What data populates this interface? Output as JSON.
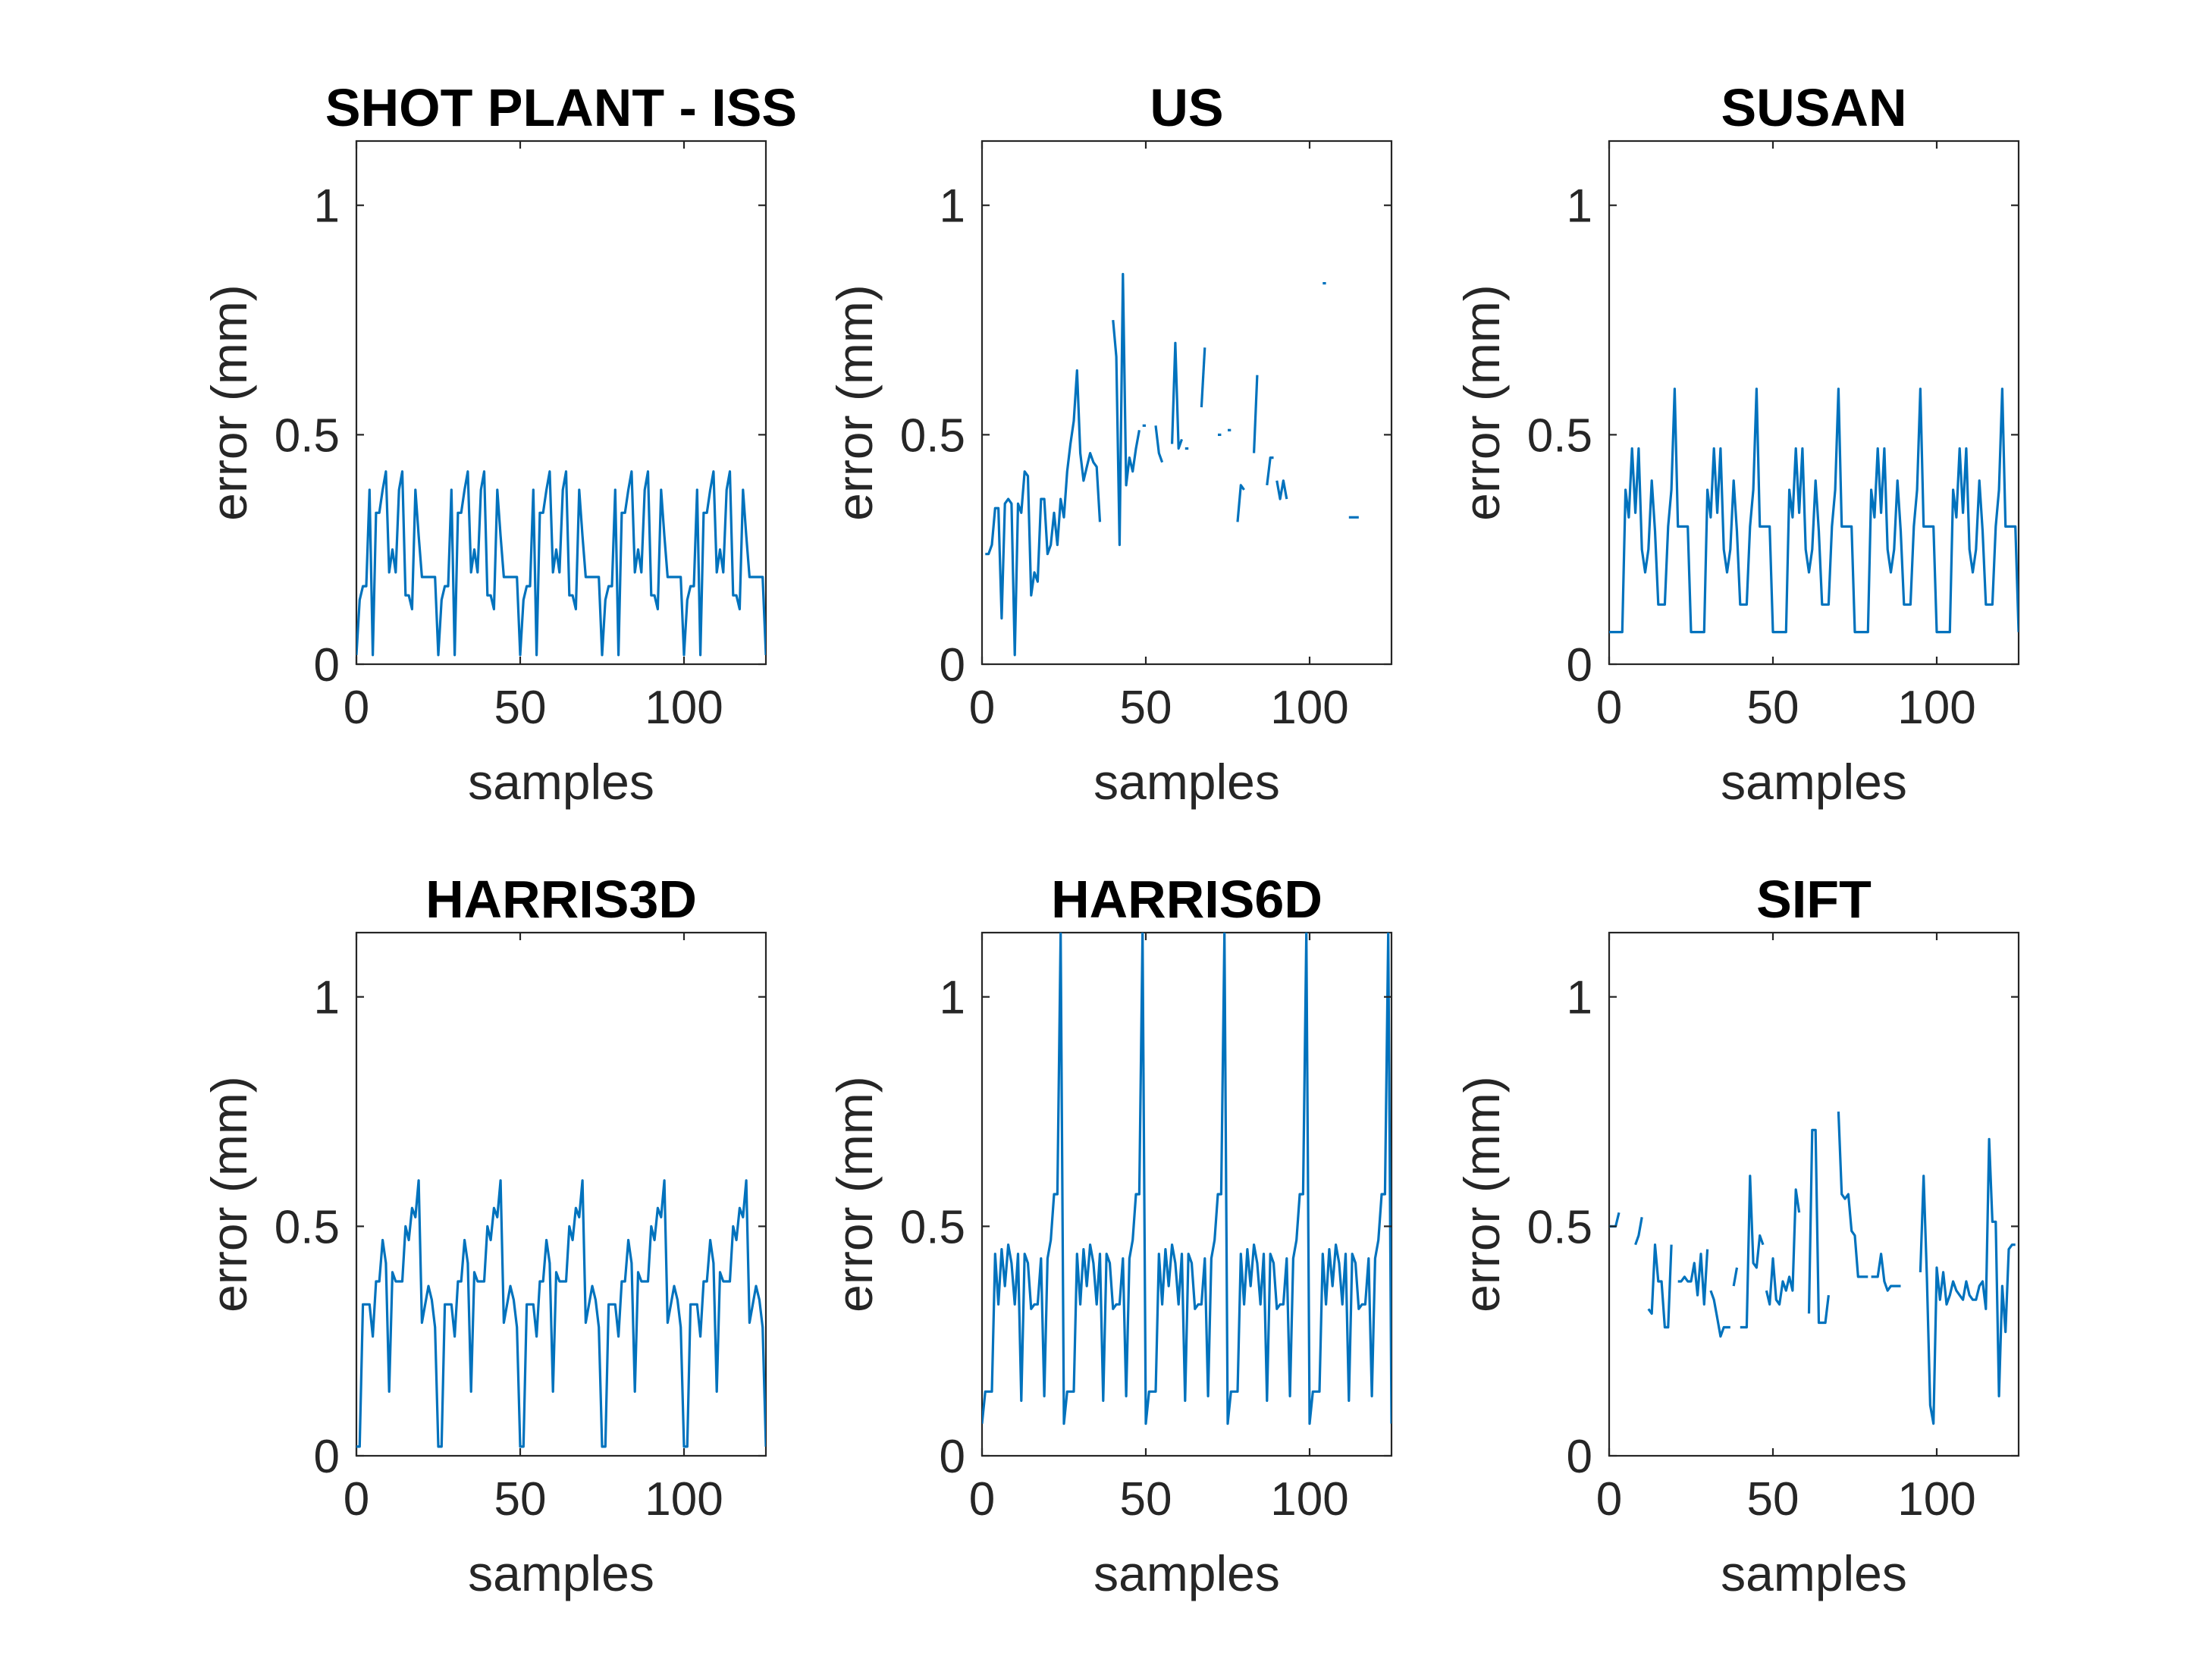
{
  "figure": {
    "series_color": "#0072BD",
    "axis_color": "#262626"
  },
  "chart_data": [
    {
      "type": "line",
      "title": "SHOT PLANT - ISS",
      "xlabel": "samples",
      "ylabel": "error (mm)",
      "xlim": [
        0,
        125
      ],
      "ylim": [
        0,
        1.14
      ],
      "xticks": [
        0,
        50,
        100
      ],
      "yticks": [
        0,
        0.5,
        1
      ],
      "xtick_labels": [
        "0",
        "50",
        "100"
      ],
      "ytick_labels": [
        "0",
        "0.5",
        "1"
      ],
      "pattern_period": 25,
      "pattern": [
        0.02,
        0.14,
        0.17,
        0.17,
        0.38,
        0.02,
        0.33,
        0.33,
        0.38,
        0.42,
        0.2,
        0.25,
        0.2,
        0.38,
        0.42,
        0.15,
        0.15,
        0.12,
        0.38,
        0.28,
        0.19,
        0.19,
        0.19,
        0.19,
        0.19
      ]
    },
    {
      "type": "line",
      "title": "US",
      "xlabel": "samples",
      "ylabel": "error (mm)",
      "xlim": [
        0,
        125
      ],
      "ylim": [
        0,
        1.14
      ],
      "xticks": [
        0,
        50,
        100
      ],
      "yticks": [
        0,
        0.5,
        1
      ],
      "xtick_labels": [
        "0",
        "50",
        "100"
      ],
      "ytick_labels": [
        "0",
        "0.5",
        "1"
      ],
      "segments": [
        [
          [
            1,
            0.24
          ],
          [
            2,
            0.24
          ],
          [
            3,
            0.26
          ],
          [
            4,
            0.34
          ],
          [
            5,
            0.34
          ],
          [
            6,
            0.1
          ],
          [
            7,
            0.35
          ],
          [
            8,
            0.36
          ],
          [
            9,
            0.35
          ],
          [
            10,
            0.02
          ],
          [
            11,
            0.35
          ],
          [
            12,
            0.33
          ],
          [
            13,
            0.42
          ],
          [
            14,
            0.41
          ],
          [
            15,
            0.15
          ],
          [
            16,
            0.2
          ],
          [
            17,
            0.18
          ],
          [
            18,
            0.36
          ],
          [
            19,
            0.36
          ],
          [
            20,
            0.24
          ],
          [
            21,
            0.26
          ],
          [
            22,
            0.33
          ],
          [
            23,
            0.26
          ],
          [
            24,
            0.36
          ],
          [
            25,
            0.32
          ],
          [
            26,
            0.42
          ],
          [
            27,
            0.48
          ],
          [
            28,
            0.53
          ],
          [
            29,
            0.64
          ],
          [
            30,
            0.46
          ],
          [
            31,
            0.4
          ],
          [
            32,
            0.43
          ],
          [
            33,
            0.46
          ],
          [
            34,
            0.44
          ],
          [
            35,
            0.43
          ],
          [
            36,
            0.31
          ]
        ],
        [
          [
            40,
            0.75
          ],
          [
            41,
            0.67
          ],
          [
            42,
            0.26
          ],
          [
            43,
            0.85
          ],
          [
            44,
            0.39
          ],
          [
            45,
            0.45
          ],
          [
            46,
            0.42
          ],
          [
            47,
            0.47
          ],
          [
            48,
            0.51
          ]
        ],
        [
          [
            49,
            0.52
          ],
          [
            50,
            0.52
          ]
        ],
        [
          [
            53,
            0.52
          ],
          [
            54,
            0.46
          ],
          [
            55,
            0.44
          ]
        ],
        [
          [
            58,
            0.48
          ],
          [
            59,
            0.7
          ],
          [
            60,
            0.47
          ],
          [
            61,
            0.49
          ]
        ],
        [
          [
            62,
            0.47
          ],
          [
            63,
            0.47
          ]
        ],
        [
          [
            67,
            0.56
          ],
          [
            68,
            0.69
          ]
        ],
        [
          [
            72,
            0.5
          ],
          [
            73,
            0.5
          ]
        ],
        [
          [
            75,
            0.51
          ],
          [
            76,
            0.51
          ]
        ],
        [
          [
            78,
            0.31
          ],
          [
            79,
            0.39
          ],
          [
            80,
            0.38
          ]
        ],
        [
          [
            83,
            0.46
          ],
          [
            84,
            0.63
          ]
        ],
        [
          [
            87,
            0.39
          ],
          [
            88,
            0.45
          ],
          [
            89,
            0.45
          ]
        ],
        [
          [
            90,
            0.4
          ],
          [
            91,
            0.36
          ],
          [
            92,
            0.4
          ],
          [
            93,
            0.36
          ]
        ],
        [
          [
            104,
            0.83
          ],
          [
            105,
            0.83
          ]
        ],
        [
          [
            112,
            0.32
          ],
          [
            115,
            0.32
          ]
        ]
      ]
    },
    {
      "type": "line",
      "title": "SUSAN",
      "xlabel": "samples",
      "ylabel": "error (mm)",
      "xlim": [
        0,
        125
      ],
      "ylim": [
        0,
        1.14
      ],
      "xticks": [
        0,
        50,
        100
      ],
      "yticks": [
        0,
        0.5,
        1
      ],
      "xtick_labels": [
        "0",
        "50",
        "100"
      ],
      "ytick_labels": [
        "0",
        "0.5",
        "1"
      ],
      "pattern_period": 25,
      "pattern": [
        0.07,
        0.07,
        0.07,
        0.07,
        0.07,
        0.38,
        0.32,
        0.47,
        0.33,
        0.47,
        0.25,
        0.2,
        0.25,
        0.4,
        0.29,
        0.13,
        0.13,
        0.13,
        0.3,
        0.38,
        0.6,
        0.3,
        0.3,
        0.3,
        0.3
      ]
    },
    {
      "type": "line",
      "title": "HARRIS3D",
      "xlabel": "samples",
      "ylabel": "error (mm)",
      "xlim": [
        0,
        125
      ],
      "ylim": [
        0,
        1.14
      ],
      "xticks": [
        0,
        50,
        100
      ],
      "yticks": [
        0,
        0.5,
        1
      ],
      "xtick_labels": [
        "0",
        "50",
        "100"
      ],
      "ytick_labels": [
        "0",
        "0.5",
        "1"
      ],
      "pattern_period": 25,
      "pattern": [
        0.02,
        0.02,
        0.33,
        0.33,
        0.33,
        0.26,
        0.38,
        0.38,
        0.47,
        0.42,
        0.14,
        0.4,
        0.38,
        0.38,
        0.38,
        0.5,
        0.47,
        0.54,
        0.52,
        0.6,
        0.29,
        0.33,
        0.37,
        0.34,
        0.28
      ]
    },
    {
      "type": "line",
      "title": "HARRIS6D",
      "xlabel": "samples",
      "ylabel": "error (mm)",
      "xlim": [
        0,
        125
      ],
      "ylim": [
        0,
        1.14
      ],
      "xticks": [
        0,
        50,
        100
      ],
      "yticks": [
        0,
        0.5,
        1
      ],
      "xtick_labels": [
        "0",
        "50",
        "100"
      ],
      "ytick_labels": [
        "0",
        "0.5",
        "1"
      ],
      "pattern_period": 25,
      "pattern": [
        0.07,
        0.14,
        0.14,
        0.14,
        0.44,
        0.33,
        0.45,
        0.37,
        0.46,
        0.42,
        0.33,
        0.44,
        0.12,
        0.44,
        0.42,
        0.32,
        0.33,
        0.33,
        0.43,
        0.13,
        0.43,
        0.47,
        0.57,
        0.57,
        1.14
      ]
    },
    {
      "type": "line",
      "title": "SIFT",
      "xlabel": "samples",
      "ylabel": "error (mm)",
      "xlim": [
        0,
        125
      ],
      "ylim": [
        0,
        1.14
      ],
      "xticks": [
        0,
        50,
        100
      ],
      "yticks": [
        0,
        0.5,
        1
      ],
      "xtick_labels": [
        "0",
        "50",
        "100"
      ],
      "ytick_labels": [
        "0",
        "0.5",
        "1"
      ],
      "segments": [
        [
          [
            0,
            0.5
          ],
          [
            2,
            0.5
          ],
          [
            3,
            0.53
          ]
        ],
        [
          [
            8,
            0.46
          ],
          [
            9,
            0.48
          ],
          [
            10,
            0.52
          ]
        ],
        [
          [
            12,
            0.32
          ],
          [
            13,
            0.31
          ],
          [
            14,
            0.46
          ],
          [
            15,
            0.38
          ],
          [
            16,
            0.38
          ],
          [
            17,
            0.28
          ],
          [
            18,
            0.28
          ],
          [
            19,
            0.46
          ]
        ],
        [
          [
            21,
            0.38
          ],
          [
            22,
            0.38
          ],
          [
            23,
            0.39
          ],
          [
            24,
            0.38
          ],
          [
            25,
            0.38
          ],
          [
            26,
            0.42
          ],
          [
            27,
            0.35
          ],
          [
            28,
            0.44
          ],
          [
            29,
            0.33
          ],
          [
            30,
            0.45
          ]
        ],
        [
          [
            31,
            0.36
          ],
          [
            32,
            0.34
          ],
          [
            33,
            0.3
          ],
          [
            34,
            0.26
          ],
          [
            35,
            0.28
          ],
          [
            36,
            0.28
          ],
          [
            37,
            0.28
          ]
        ],
        [
          [
            38,
            0.37
          ],
          [
            39,
            0.41
          ]
        ],
        [
          [
            40,
            0.28
          ],
          [
            41,
            0.28
          ],
          [
            42,
            0.28
          ],
          [
            43,
            0.61
          ],
          [
            44,
            0.42
          ],
          [
            45,
            0.41
          ],
          [
            46,
            0.48
          ],
          [
            47,
            0.46
          ]
        ],
        [
          [
            48,
            0.36
          ],
          [
            49,
            0.33
          ],
          [
            50,
            0.43
          ],
          [
            51,
            0.34
          ],
          [
            52,
            0.33
          ],
          [
            53,
            0.38
          ],
          [
            54,
            0.36
          ],
          [
            55,
            0.39
          ],
          [
            56,
            0.36
          ],
          [
            57,
            0.58
          ],
          [
            58,
            0.53
          ]
        ],
        [
          [
            61,
            0.31
          ],
          [
            62,
            0.71
          ],
          [
            63,
            0.71
          ],
          [
            64,
            0.29
          ],
          [
            65,
            0.29
          ],
          [
            66,
            0.29
          ],
          [
            67,
            0.35
          ]
        ],
        [
          [
            70,
            0.75
          ],
          [
            71,
            0.57
          ],
          [
            72,
            0.56
          ],
          [
            73,
            0.57
          ],
          [
            74,
            0.49
          ],
          [
            75,
            0.48
          ],
          [
            76,
            0.39
          ],
          [
            77,
            0.39
          ],
          [
            78,
            0.39
          ],
          [
            79,
            0.39
          ]
        ],
        [
          [
            80,
            0.39
          ],
          [
            81,
            0.39
          ],
          [
            82,
            0.39
          ],
          [
            83,
            0.44
          ],
          [
            84,
            0.38
          ],
          [
            85,
            0.36
          ],
          [
            86,
            0.37
          ],
          [
            87,
            0.37
          ],
          [
            88,
            0.37
          ],
          [
            89,
            0.37
          ]
        ],
        [
          [
            95,
            0.4
          ],
          [
            96,
            0.61
          ],
          [
            97,
            0.39
          ],
          [
            98,
            0.11
          ],
          [
            99,
            0.07
          ],
          [
            100,
            0.41
          ],
          [
            101,
            0.34
          ],
          [
            102,
            0.4
          ],
          [
            103,
            0.33
          ],
          [
            104,
            0.35
          ],
          [
            105,
            0.38
          ],
          [
            106,
            0.36
          ],
          [
            107,
            0.35
          ],
          [
            108,
            0.34
          ],
          [
            109,
            0.38
          ],
          [
            110,
            0.35
          ],
          [
            111,
            0.34
          ],
          [
            112,
            0.34
          ],
          [
            113,
            0.37
          ],
          [
            114,
            0.38
          ],
          [
            115,
            0.32
          ],
          [
            116,
            0.69
          ],
          [
            117,
            0.51
          ],
          [
            118,
            0.51
          ],
          [
            119,
            0.13
          ],
          [
            120,
            0.37
          ],
          [
            121,
            0.27
          ],
          [
            122,
            0.45
          ],
          [
            123,
            0.46
          ],
          [
            124,
            0.46
          ]
        ]
      ]
    }
  ]
}
